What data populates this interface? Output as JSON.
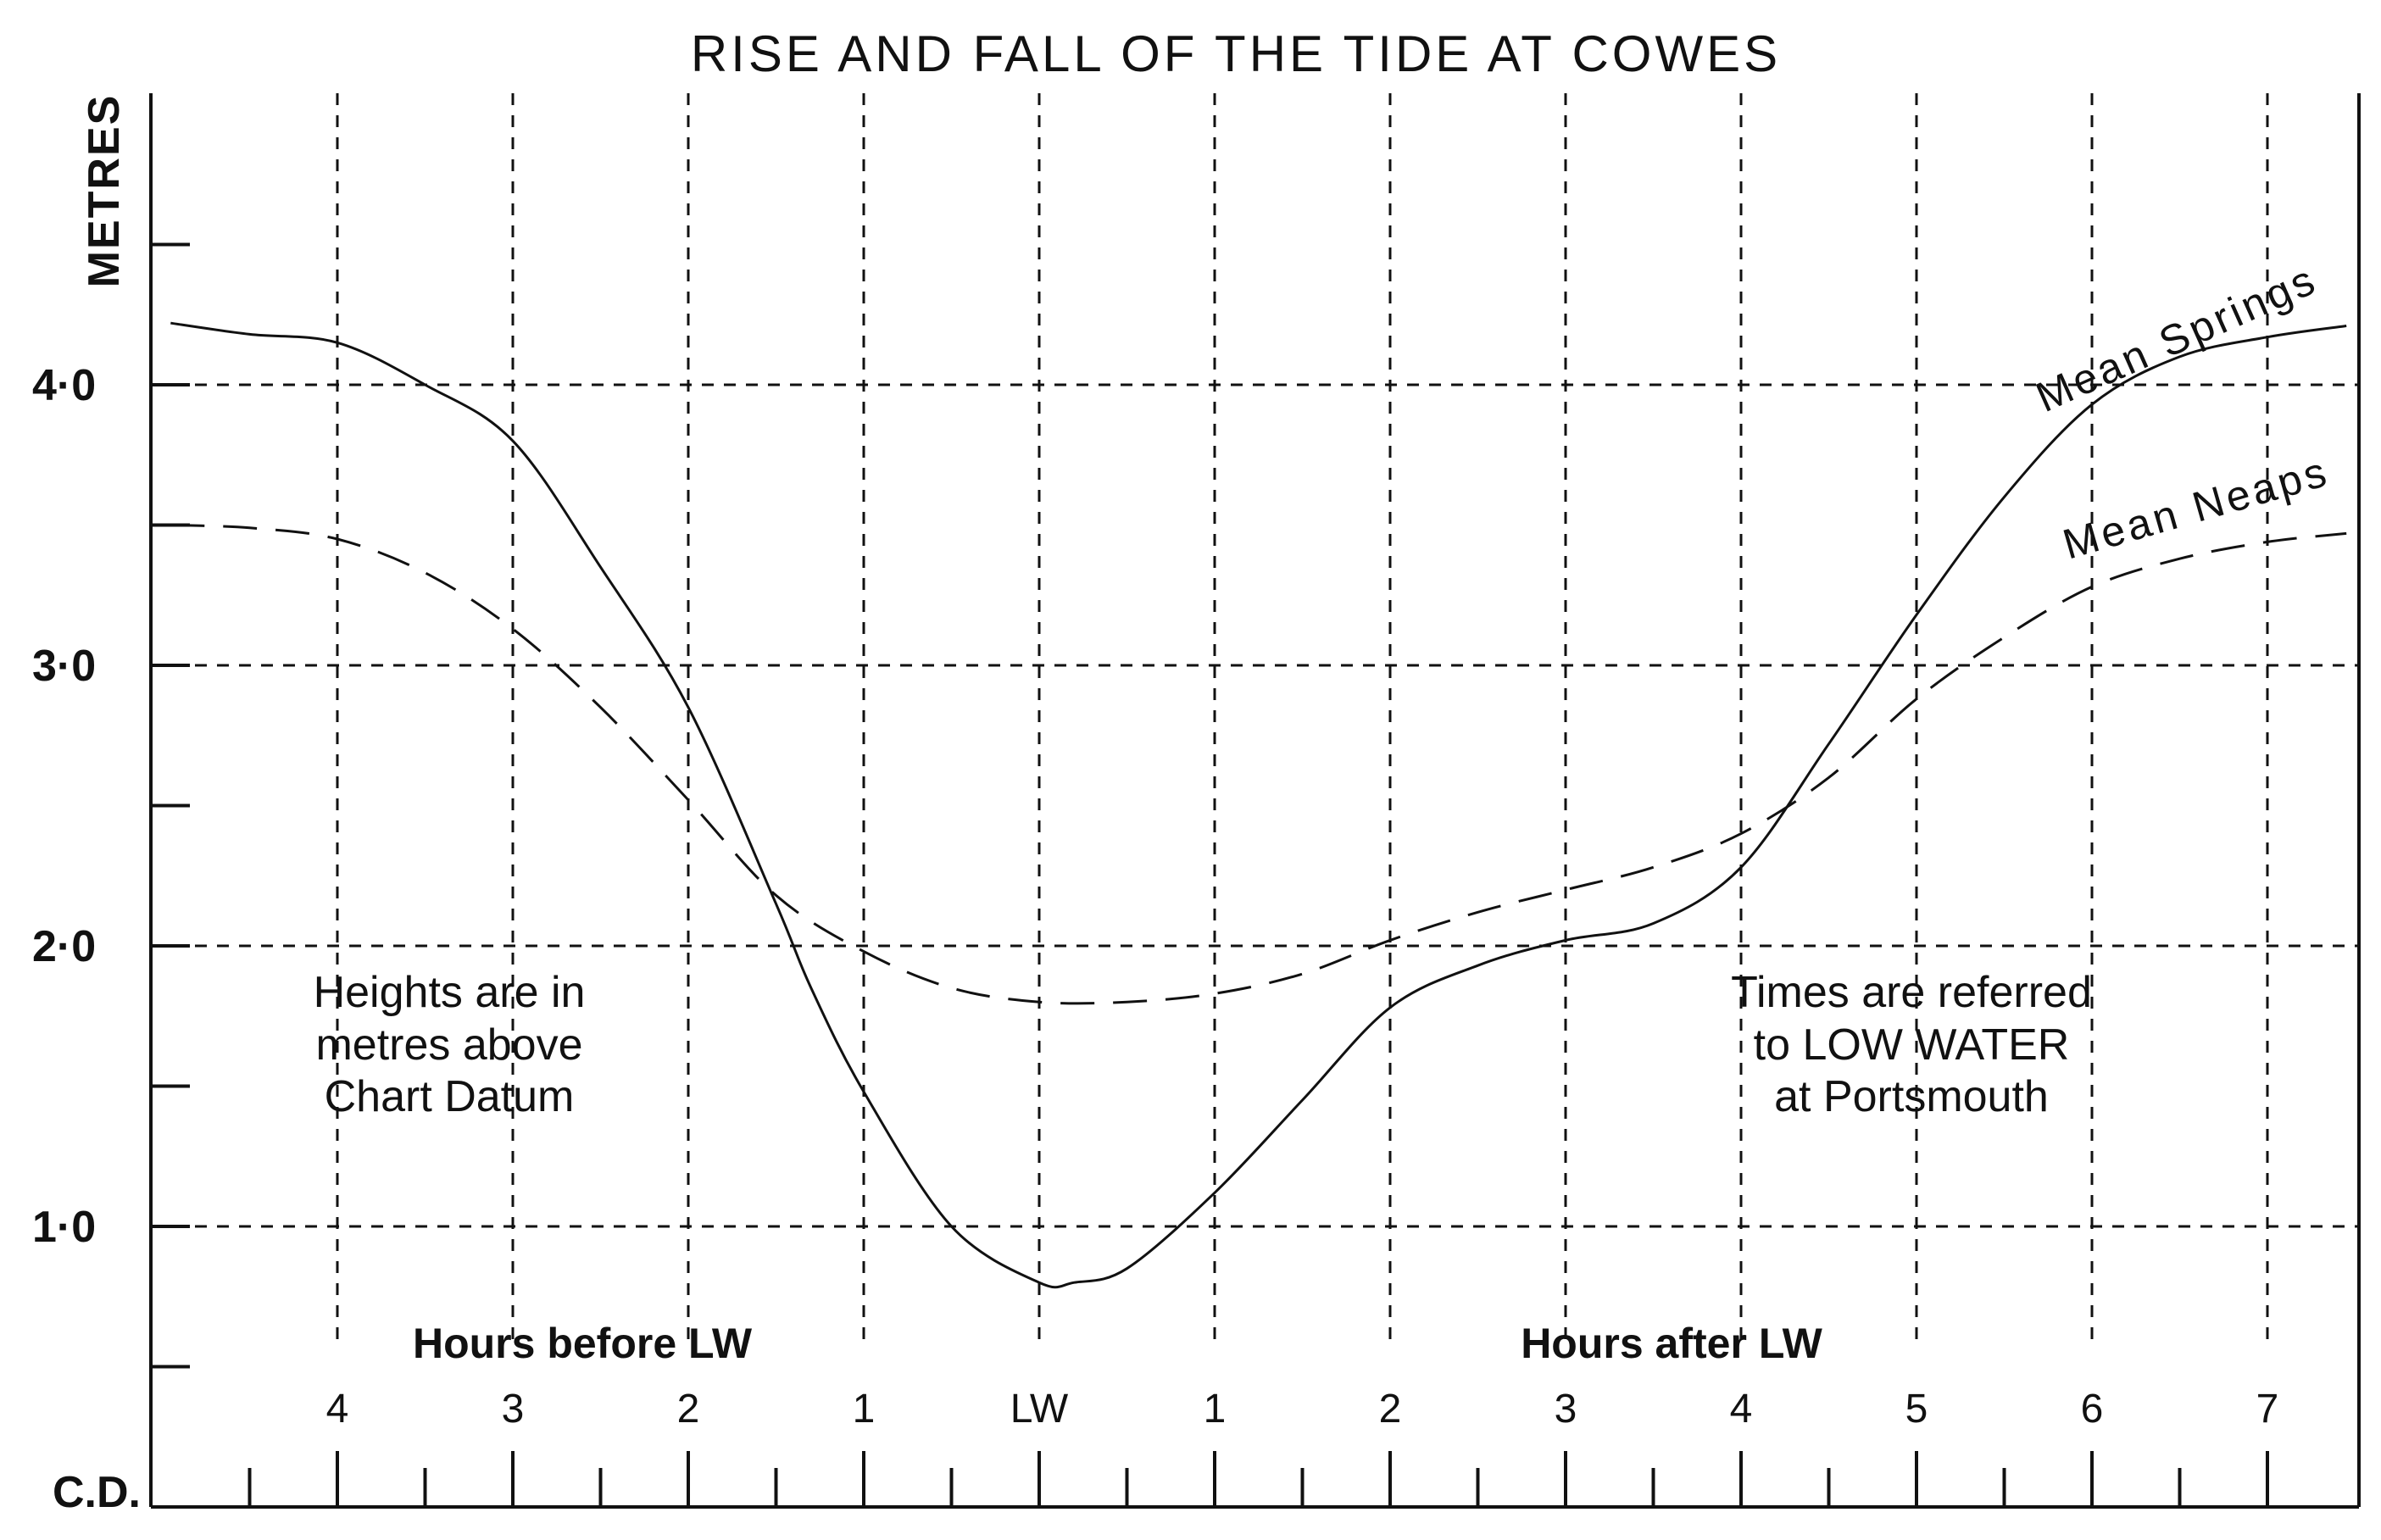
{
  "chart_data": {
    "type": "line",
    "title": "RISE AND FALL OF THE TIDE AT COWES",
    "ylabel": "METRES",
    "ylim": [
      0,
      5
    ],
    "xlim": [
      -4.95,
      7.45
    ],
    "y_tick_labels": [
      {
        "value": 4.0,
        "label": "4·0"
      },
      {
        "value": 3.0,
        "label": "3·0"
      },
      {
        "value": 2.0,
        "label": "2·0"
      },
      {
        "value": 1.0,
        "label": "1·0"
      }
    ],
    "y_minor_ticks": [
      4.5,
      3.5,
      2.5,
      1.5,
      0.5
    ],
    "baseline_label": "C.D.",
    "x_tick_labels": [
      {
        "value": -4,
        "label": "4"
      },
      {
        "value": -3,
        "label": "3"
      },
      {
        "value": -2,
        "label": "2"
      },
      {
        "value": -1,
        "label": "1"
      },
      {
        "value": 0,
        "label": "LW"
      },
      {
        "value": 1,
        "label": "1"
      },
      {
        "value": 2,
        "label": "2"
      },
      {
        "value": 3,
        "label": "3"
      },
      {
        "value": 4,
        "label": "4"
      },
      {
        "value": 5,
        "label": "5"
      },
      {
        "value": 6,
        "label": "6"
      },
      {
        "value": 7,
        "label": "7"
      }
    ],
    "x_group_labels": {
      "before": "Hours before LW",
      "after": "Hours after LW"
    },
    "grid": true,
    "series": [
      {
        "name": "Mean Springs",
        "style": "solid",
        "x": [
          -4.95,
          -4.5,
          -4.0,
          -3.5,
          -3.0,
          -2.5,
          -2.0,
          -1.5,
          -1.3,
          -1.0,
          -0.5,
          0.0,
          0.2,
          0.5,
          1.0,
          1.5,
          2.0,
          2.5,
          3.0,
          3.5,
          4.0,
          4.5,
          5.0,
          5.5,
          6.0,
          6.5,
          7.0,
          7.45
        ],
        "y": [
          4.22,
          4.18,
          4.15,
          4.0,
          3.8,
          3.35,
          2.85,
          2.15,
          1.85,
          1.48,
          1.0,
          0.8,
          0.8,
          0.85,
          1.12,
          1.45,
          1.78,
          1.93,
          2.02,
          2.08,
          2.28,
          2.72,
          3.18,
          3.6,
          3.93,
          4.1,
          4.17,
          4.21
        ]
      },
      {
        "name": "Mean Neaps",
        "style": "dashed",
        "x": [
          -4.95,
          -4.5,
          -4.0,
          -3.5,
          -3.0,
          -2.5,
          -2.0,
          -1.5,
          -1.0,
          -0.5,
          0.0,
          0.5,
          1.0,
          1.5,
          2.0,
          2.5,
          3.0,
          3.5,
          4.0,
          4.5,
          5.0,
          5.5,
          6.0,
          6.5,
          7.0,
          7.45
        ],
        "y": [
          3.5,
          3.49,
          3.45,
          3.33,
          3.13,
          2.85,
          2.52,
          2.18,
          1.98,
          1.85,
          1.8,
          1.8,
          1.83,
          1.9,
          2.02,
          2.12,
          2.2,
          2.28,
          2.4,
          2.6,
          2.88,
          3.1,
          3.28,
          3.38,
          3.44,
          3.47
        ]
      }
    ],
    "annotations": {
      "left_note": [
        "Heights are in",
        "metres above",
        "Chart Datum"
      ],
      "right_note": [
        "Times are referred",
        "to LOW WATER",
        "at Portsmouth"
      ]
    }
  }
}
